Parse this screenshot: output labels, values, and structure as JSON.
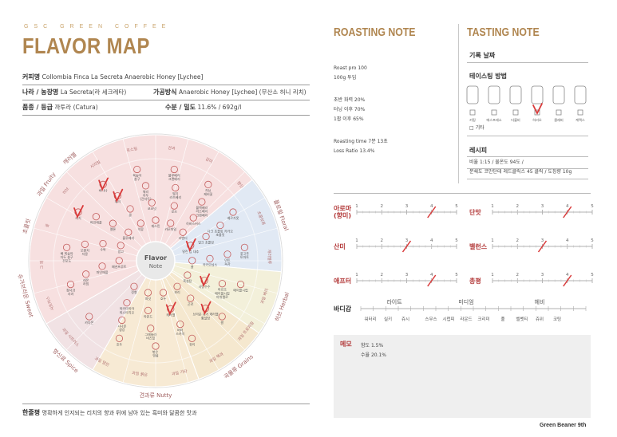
{
  "header": {
    "brand": "GSC GREEN COFFEE",
    "title": "FLAVOR MAP"
  },
  "info": {
    "coffee_name_label": "커피명",
    "coffee_name": "Collombia Finca La Secreta Anaerobic Honey [Lychee]",
    "origin_label": "나라 / 농장명",
    "origin": "La Secreta(라 세크레타)",
    "process_label": "가공방식",
    "process": "Anaerobic Honey [Lychee] (무산소 허니 리치)",
    "variety_label": "품종 / 등급",
    "variety": "까투라 (Catura)",
    "moisture_label": "수분 / 밀도",
    "moisture": "11.6% / 692g/l"
  },
  "wheel": {
    "center_line1": "Flavor",
    "center_line2": "Note",
    "categories": [
      "과일 Fruity",
      "플로럴 Floral",
      "허브 Herbal",
      "곡물류 Grains",
      "견과류 Nutty",
      "향신료 Spice",
      "슈가브라운 Sweet",
      "초콜릿",
      "캐러멜"
    ],
    "subcategories": [
      "시트러스",
      "그 외",
      "꽃",
      "허브",
      "시리얼",
      "로스팅",
      "견과",
      "감미",
      "향신",
      "초콜릿류",
      "캐러멜류",
      "과일 베리",
      "과일 트로피컬",
      "과일 핵과",
      "과일 기타",
      "과일 붉은",
      "과일 말린",
      "과일 시트러스"
    ],
    "items": [
      {
        "label": "청사과\n사과",
        "checked": false
      },
      {
        "label": "레몬\n라임",
        "checked": false
      },
      {
        "label": "파인애플",
        "checked": false
      },
      {
        "label": "패션프루트",
        "checked": false
      },
      {
        "label": "배 복숭아\n자두 살구\n건포도",
        "checked": false
      },
      {
        "label": "오렌지\n자몽",
        "checked": false
      },
      {
        "label": "수박",
        "checked": false
      },
      {
        "label": "망고",
        "checked": false
      },
      {
        "label": "리치",
        "checked": true
      },
      {
        "label": "파인애플",
        "checked": false
      },
      {
        "label": "멜론",
        "checked": false
      },
      {
        "label": "블루베리",
        "checked": false
      },
      {
        "label": "바나나",
        "checked": true
      },
      {
        "label": "체리",
        "checked": true
      },
      {
        "label": "귤",
        "checked": false
      },
      {
        "label": "석류",
        "checked": false
      },
      {
        "label": "복숭아\n살구",
        "checked": false
      },
      {
        "label": "체리\n자두\n(건자두)",
        "checked": false
      },
      {
        "label": "코코넛",
        "checked": false
      },
      {
        "label": "재스민",
        "checked": false
      },
      {
        "label": "블루베리\n크랜베리",
        "checked": false
      },
      {
        "label": "딸기\n라즈베리",
        "checked": false
      },
      {
        "label": "로즈",
        "checked": false
      },
      {
        "label": "카모마일",
        "checked": false
      },
      {
        "label": "허브\n제비꽃",
        "checked": false
      },
      {
        "label": "블랙베리\n라즈베리\n크랜베리",
        "checked": false
      },
      {
        "label": "히비스커스",
        "checked": false
      },
      {
        "label": "라벤더",
        "checked": false
      },
      {
        "label": "베르가못",
        "checked": false
      },
      {
        "label": "다크 초콜릿 카카오\n초콜릿",
        "checked": false
      },
      {
        "label": "밀크 초콜릿",
        "checked": false
      },
      {
        "label": "말린 감 대추",
        "checked": true
      },
      {
        "label": "풋고추\n토마토",
        "checked": false
      },
      {
        "label": "민트\n녹차",
        "checked": false
      },
      {
        "label": "카카오닙스",
        "checked": false
      },
      {
        "label": "꿀",
        "checked": false
      },
      {
        "label": "메이플시럽",
        "checked": false
      },
      {
        "label": "마르조\n메이플시럽\n마쉬멜로",
        "checked": false
      },
      {
        "label": "사탕수수",
        "checked": true
      },
      {
        "label": "흑설탕",
        "checked": false
      },
      {
        "label": "쌀",
        "checked": false
      },
      {
        "label": "브라운 슈거 캐러멜\n황설탕",
        "checked": true
      },
      {
        "label": "곤로",
        "checked": false
      },
      {
        "label": "보리",
        "checked": false
      },
      {
        "label": "귀리",
        "checked": false
      },
      {
        "label": "버터\n스카치",
        "checked": false
      },
      {
        "label": "캐러멜",
        "checked": true
      },
      {
        "label": "호두",
        "checked": false
      },
      {
        "label": "볶은 \n땅콩",
        "checked": false
      },
      {
        "label": "그래놀라\n비스킷",
        "checked": false
      },
      {
        "label": "아몬드",
        "checked": false
      },
      {
        "label": "피넛",
        "checked": false
      },
      {
        "label": "호두",
        "checked": false
      },
      {
        "label": "시나몬\n생강",
        "checked": false
      },
      {
        "label": "마카다미아\n피스타치오",
        "checked": false
      },
      {
        "label": "정향",
        "checked": false
      },
      {
        "label": "카다몬",
        "checked": false
      }
    ]
  },
  "one_line": {
    "label": "한줄평",
    "text": "명확하게 인지되는 리치의 향과 뒤에 남아 있는 흑미와 달콤한 맛과"
  },
  "roasting": {
    "title": "ROASTING NOTE",
    "lines1": [
      "Roast pro 100",
      "100g 투입"
    ],
    "lines2": [
      "초반 화력 20%",
      "터닝 이후 70%",
      "1팝 이후 65%"
    ],
    "lines3": [
      "Roasting time 7분 13초",
      "Loss Ratio 13.4%"
    ]
  },
  "tasting": {
    "title": "TASTING NOTE",
    "date_label": "기록 날짜",
    "method_label": "테이스팅 방법",
    "methods": [
      {
        "name": "커핑",
        "checked": false
      },
      {
        "name": "에스프레소",
        "checked": false
      },
      {
        "name": "더블비",
        "checked": false
      },
      {
        "name": "하리오",
        "checked": true
      },
      {
        "name": "클레버",
        "checked": false
      },
      {
        "name": "케멕스",
        "checked": false
      }
    ],
    "other_label": "기타",
    "recipe_label": "레시피",
    "recipe_lines": [
      "비율 1:15 / 물온도 94도 /",
      "분쇄도 코만단테 레드클릭스 45 클릭 / 도징량 10g"
    ]
  },
  "scales": [
    {
      "name": "아로마\n(향미)",
      "value": 4,
      "side": "left"
    },
    {
      "name": "단맛",
      "value": 4,
      "side": "right"
    },
    {
      "name": "산미",
      "value": 3,
      "side": "left"
    },
    {
      "name": "밸런스",
      "value": 3,
      "side": "right"
    },
    {
      "name": "애프터",
      "value": 4,
      "side": "left"
    },
    {
      "name": "총평",
      "value": 4,
      "side": "right"
    }
  ],
  "scale_ticks": [
    "1",
    "2",
    "3",
    "4",
    "5"
  ],
  "body": {
    "label": "바디감",
    "groups": [
      "라이트",
      "미디엄",
      "헤비"
    ],
    "items": [
      "워터리",
      "실키",
      "쥬시",
      "스무스",
      "시럽피",
      "라운드",
      "크리미",
      "풀",
      "벨벳티",
      "쥬위",
      "코팅"
    ]
  },
  "memo": {
    "label": "메모",
    "lines": [
      "함도 1.5%",
      "수율 20.1%"
    ]
  },
  "footer": "Green Beaner 9th",
  "colors": {
    "accent": "#b08650",
    "check": "#d93a3a",
    "fruity": "#f7e0e0",
    "floral": "#e1e9f4",
    "herbal": "#f3f0da",
    "nutty": "#f7ead4",
    "sweet": "#f1e2e4"
  }
}
